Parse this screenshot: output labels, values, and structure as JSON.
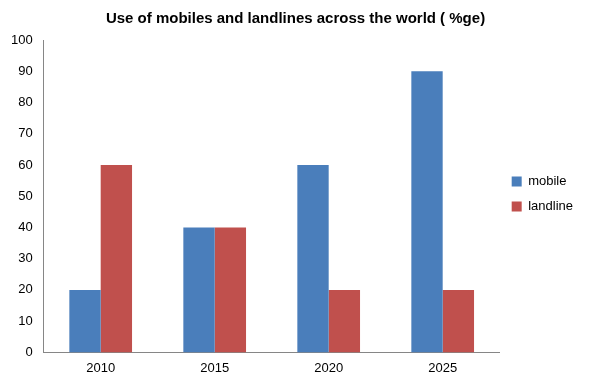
{
  "chart_data": {
    "type": "bar",
    "title": "Use of mobiles and landlines across the world ( %ge)",
    "categories": [
      "2010",
      "2015",
      "2020",
      "2025"
    ],
    "series": [
      {
        "name": "mobile",
        "color": "#4a7ebb",
        "values": [
          20,
          40,
          60,
          90
        ]
      },
      {
        "name": "landline",
        "color": "#c0504d",
        "values": [
          60,
          40,
          20,
          20
        ]
      }
    ],
    "ylim": [
      0,
      100
    ],
    "yticks": [
      0,
      10,
      20,
      30,
      40,
      50,
      60,
      70,
      80,
      90,
      100
    ],
    "grid": false,
    "legend": "right"
  }
}
